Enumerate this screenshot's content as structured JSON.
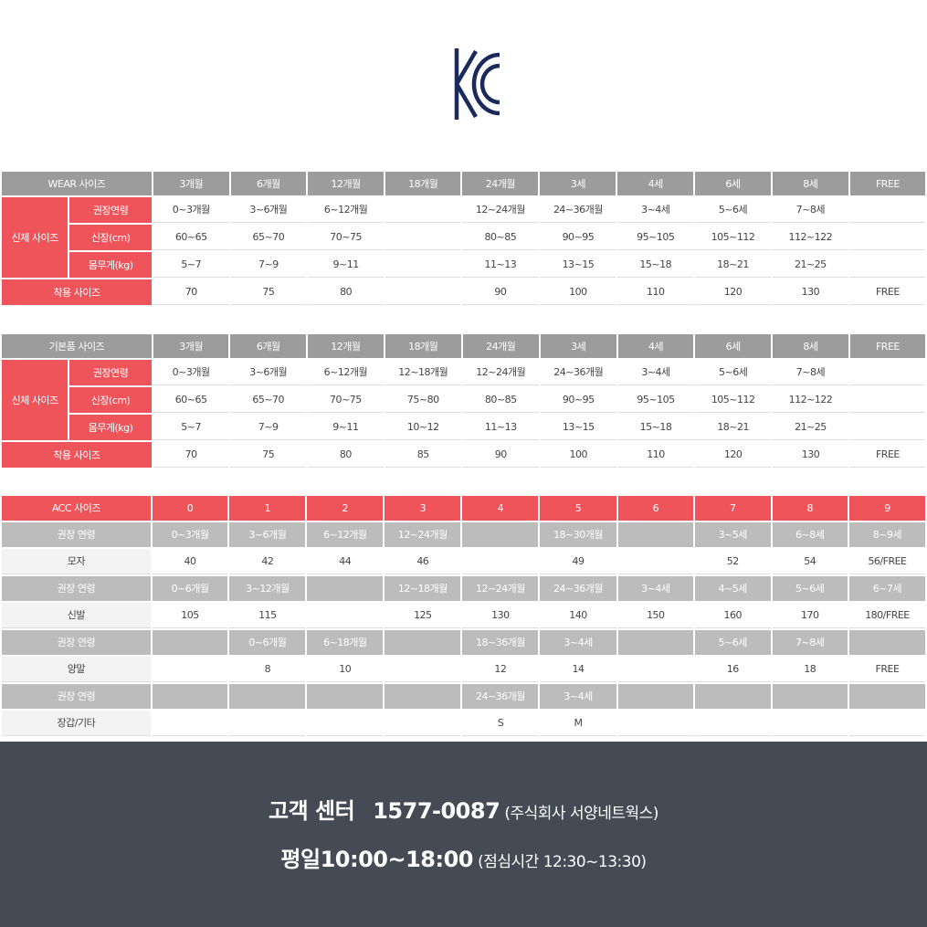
{
  "logo": {
    "name": "KC certification mark",
    "color": "#1b2a5c"
  },
  "colors": {
    "red": "#f0545b",
    "gray_header": "#9c9c9c",
    "gray_band": "#bcbcbc",
    "footer_bg": "#454a55"
  },
  "wear_table": {
    "header_label": "WEAR 사이즈",
    "sizes": [
      "3개월",
      "6개월",
      "12개월",
      "18개월",
      "24개월",
      "3세",
      "4세",
      "6세",
      "8세",
      "FREE"
    ],
    "body_label": "신체 사이즈",
    "rows": [
      {
        "label": "권장연령",
        "values": [
          "0~3개월",
          "3~6개월",
          "6~12개월",
          "",
          "12~24개월",
          "24~36개월",
          "3~4세",
          "5~6세",
          "7~8세",
          ""
        ]
      },
      {
        "label": "신장(cm)",
        "values": [
          "60~65",
          "65~70",
          "70~75",
          "",
          "80~85",
          "90~95",
          "95~105",
          "105~112",
          "112~122",
          ""
        ]
      },
      {
        "label": "몸무게(kg)",
        "values": [
          "5~7",
          "7~9",
          "9~11",
          "",
          "11~13",
          "13~15",
          "15~18",
          "18~21",
          "21~25",
          ""
        ]
      }
    ],
    "fit_label": "착용 사이즈",
    "fit_values": [
      "70",
      "75",
      "80",
      "",
      "90",
      "100",
      "110",
      "120",
      "130",
      "FREE"
    ]
  },
  "basic_table": {
    "header_label": "기본품 사이즈",
    "sizes": [
      "3개월",
      "6개월",
      "12개월",
      "18개월",
      "24개월",
      "3세",
      "4세",
      "6세",
      "8세",
      "FREE"
    ],
    "body_label": "신체 사이즈",
    "rows": [
      {
        "label": "권장연령",
        "values": [
          "0~3개월",
          "3~6개월",
          "6~12개월",
          "12~18개월",
          "12~24개월",
          "24~36개월",
          "3~4세",
          "5~6세",
          "7~8세",
          ""
        ]
      },
      {
        "label": "신장(cm)",
        "values": [
          "60~65",
          "65~70",
          "70~75",
          "75~80",
          "80~85",
          "90~95",
          "95~105",
          "105~112",
          "112~122",
          ""
        ]
      },
      {
        "label": "몸무게(kg)",
        "values": [
          "5~7",
          "7~9",
          "9~11",
          "10~12",
          "11~13",
          "13~15",
          "15~18",
          "18~21",
          "21~25",
          ""
        ]
      }
    ],
    "fit_label": "착용 사이즈",
    "fit_values": [
      "70",
      "75",
      "80",
      "85",
      "90",
      "100",
      "110",
      "120",
      "130",
      "FREE"
    ]
  },
  "acc_table": {
    "header_label": "ACC 사이즈",
    "sizes": [
      "0",
      "1",
      "2",
      "3",
      "4",
      "5",
      "6",
      "7",
      "8",
      "9"
    ],
    "groups": [
      {
        "age_label": "권장 연령",
        "ages": [
          "0~3개월",
          "3~6개월",
          "6~12개월",
          "12~24개월",
          "",
          "18~30개월",
          "",
          "3~5세",
          "6~8세",
          "8~9세"
        ],
        "item_label": "모자",
        "values": [
          "40",
          "42",
          "44",
          "46",
          "",
          "49",
          "",
          "52",
          "54",
          "56/FREE"
        ]
      },
      {
        "age_label": "권장 연령",
        "ages": [
          "0~6개월",
          "3~12개월",
          "",
          "12~18개월",
          "12~24개월",
          "24~36개월",
          "3~4세",
          "4~5세",
          "5~6세",
          "6~7세"
        ],
        "item_label": "신발",
        "values": [
          "105",
          "115",
          "",
          "125",
          "130",
          "140",
          "150",
          "160",
          "170",
          "180/FREE"
        ]
      },
      {
        "age_label": "권장 연령",
        "ages": [
          "",
          "0~6개월",
          "6~18개월",
          "",
          "18~36개월",
          "3~4세",
          "",
          "5~6세",
          "7~8세",
          ""
        ],
        "item_label": "양말",
        "values": [
          "",
          "8",
          "10",
          "",
          "12",
          "14",
          "",
          "16",
          "18",
          "FREE"
        ]
      },
      {
        "age_label": "권장 연령",
        "ages": [
          "",
          "",
          "",
          "",
          "24~36개월",
          "3~4세",
          "",
          "",
          "",
          ""
        ],
        "item_label": "장갑/기타",
        "values": [
          "",
          "",
          "",
          "",
          "S",
          "M",
          "",
          "",
          "",
          ""
        ]
      }
    ]
  },
  "footer": {
    "cs_label": "고객 센터",
    "phone": "1577-0087",
    "company": "(주식회사 서양네트웍스)",
    "hours_label": "평일",
    "hours": "10:00~18:00",
    "lunch": "(점심시간 12:30~13:30)"
  }
}
